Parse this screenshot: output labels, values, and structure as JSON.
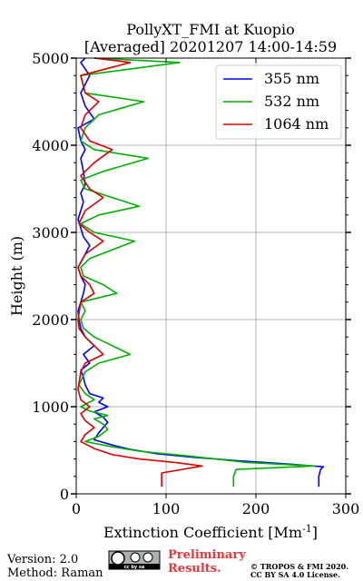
{
  "chart_data": {
    "type": "line",
    "title": "PollyXT_FMI at Kuopio",
    "subtitle": "[Averaged] 20201207 14:00-14:59",
    "xlabel": "Extinction Coefficient [Mm",
    "xlabel_sup": "-1",
    "xlabel_end": "]",
    "ylabel": "Height (m)",
    "xlim": [
      0,
      300
    ],
    "ylim": [
      0,
      5000
    ],
    "xticks": [
      0,
      100,
      200,
      300
    ],
    "yticks": [
      0,
      1000,
      2000,
      3000,
      4000,
      5000
    ],
    "grid": true,
    "legend_position": "top-right",
    "series": [
      {
        "name": "355 nm",
        "color": "#0000ff",
        "points": [
          [
            270,
            80
          ],
          [
            270,
            200
          ],
          [
            272,
            280
          ],
          [
            275,
            310
          ],
          [
            240,
            340
          ],
          [
            180,
            380
          ],
          [
            130,
            420
          ],
          [
            90,
            460
          ],
          [
            60,
            510
          ],
          [
            40,
            560
          ],
          [
            20,
            620
          ],
          [
            25,
            700
          ],
          [
            30,
            760
          ],
          [
            35,
            820
          ],
          [
            30,
            880
          ],
          [
            20,
            940
          ],
          [
            35,
            1000
          ],
          [
            25,
            1050
          ],
          [
            30,
            1100
          ],
          [
            15,
            1150
          ],
          [
            10,
            1250
          ],
          [
            8,
            1340
          ],
          [
            5,
            1420
          ],
          [
            15,
            1500
          ],
          [
            8,
            1600
          ],
          [
            20,
            1700
          ],
          [
            10,
            1800
          ],
          [
            5,
            1900
          ],
          [
            3,
            2000
          ],
          [
            2,
            2100
          ],
          [
            5,
            2200
          ],
          [
            8,
            2300
          ],
          [
            10,
            2400
          ],
          [
            5,
            2500
          ],
          [
            2,
            2600
          ],
          [
            10,
            2750
          ],
          [
            15,
            2850
          ],
          [
            8,
            2950
          ],
          [
            5,
            3050
          ],
          [
            2,
            3150
          ],
          [
            5,
            3250
          ],
          [
            8,
            3350
          ],
          [
            5,
            3450
          ],
          [
            10,
            3550
          ],
          [
            8,
            3700
          ],
          [
            5,
            3850
          ],
          [
            10,
            3950
          ],
          [
            5,
            4050
          ],
          [
            2,
            4200
          ],
          [
            20,
            4300
          ],
          [
            10,
            4450
          ],
          [
            5,
            4600
          ],
          [
            15,
            4800
          ],
          [
            5,
            4950
          ],
          [
            10,
            5000
          ]
        ]
      },
      {
        "name": "532 nm",
        "color": "#00b000",
        "points": [
          [
            175,
            80
          ],
          [
            175,
            200
          ],
          [
            178,
            280
          ],
          [
            265,
            320
          ],
          [
            190,
            360
          ],
          [
            155,
            400
          ],
          [
            120,
            440
          ],
          [
            70,
            490
          ],
          [
            40,
            540
          ],
          [
            10,
            600
          ],
          [
            25,
            660
          ],
          [
            35,
            740
          ],
          [
            30,
            800
          ],
          [
            20,
            860
          ],
          [
            35,
            900
          ],
          [
            15,
            950
          ],
          [
            5,
            1000
          ],
          [
            20,
            1080
          ],
          [
            10,
            1150
          ],
          [
            3,
            1250
          ],
          [
            10,
            1400
          ],
          [
            25,
            1500
          ],
          [
            60,
            1600
          ],
          [
            40,
            1700
          ],
          [
            20,
            1800
          ],
          [
            8,
            1900
          ],
          [
            5,
            2000
          ],
          [
            10,
            2100
          ],
          [
            5,
            2200
          ],
          [
            45,
            2300
          ],
          [
            30,
            2400
          ],
          [
            8,
            2500
          ],
          [
            5,
            2600
          ],
          [
            15,
            2700
          ],
          [
            65,
            2900
          ],
          [
            20,
            3000
          ],
          [
            5,
            3100
          ],
          [
            25,
            3200
          ],
          [
            70,
            3300
          ],
          [
            40,
            3400
          ],
          [
            10,
            3500
          ],
          [
            5,
            3600
          ],
          [
            30,
            3700
          ],
          [
            80,
            3850
          ],
          [
            20,
            3950
          ],
          [
            5,
            4050
          ],
          [
            10,
            4200
          ],
          [
            25,
            4350
          ],
          [
            75,
            4500
          ],
          [
            10,
            4600
          ],
          [
            5,
            4800
          ],
          [
            115,
            4950
          ],
          [
            20,
            5000
          ]
        ]
      },
      {
        "name": "1064 nm",
        "color": "#e00000",
        "points": [
          [
            95,
            80
          ],
          [
            95,
            240
          ],
          [
            140,
            320
          ],
          [
            110,
            360
          ],
          [
            70,
            400
          ],
          [
            40,
            450
          ],
          [
            20,
            520
          ],
          [
            5,
            600
          ],
          [
            10,
            680
          ],
          [
            20,
            760
          ],
          [
            10,
            840
          ],
          [
            5,
            920
          ],
          [
            15,
            1000
          ],
          [
            5,
            1080
          ],
          [
            2,
            1200
          ],
          [
            5,
            1400
          ],
          [
            10,
            1500
          ],
          [
            30,
            1600
          ],
          [
            20,
            1700
          ],
          [
            10,
            1800
          ],
          [
            3,
            1900
          ],
          [
            2,
            2000
          ],
          [
            5,
            2200
          ],
          [
            20,
            2300
          ],
          [
            15,
            2400
          ],
          [
            5,
            2500
          ],
          [
            2,
            2600
          ],
          [
            10,
            2750
          ],
          [
            30,
            2900
          ],
          [
            15,
            3000
          ],
          [
            3,
            3100
          ],
          [
            10,
            3250
          ],
          [
            30,
            3400
          ],
          [
            15,
            3500
          ],
          [
            5,
            3650
          ],
          [
            20,
            3800
          ],
          [
            40,
            3950
          ],
          [
            15,
            4050
          ],
          [
            5,
            4200
          ],
          [
            10,
            4350
          ],
          [
            25,
            4500
          ],
          [
            10,
            4600
          ],
          [
            5,
            4800
          ],
          [
            60,
            4950
          ],
          [
            20,
            5000
          ]
        ]
      }
    ]
  },
  "footer": {
    "version": "Version: 2.0",
    "method": "Method: Raman",
    "cc_badge": "cc by sa",
    "preliminary_line1": "Preliminary",
    "preliminary_line2": "Results.",
    "copyright_line1": "© TROPOS & FMI 2020.",
    "copyright_line2": "CC BY SA 4.0 License."
  }
}
